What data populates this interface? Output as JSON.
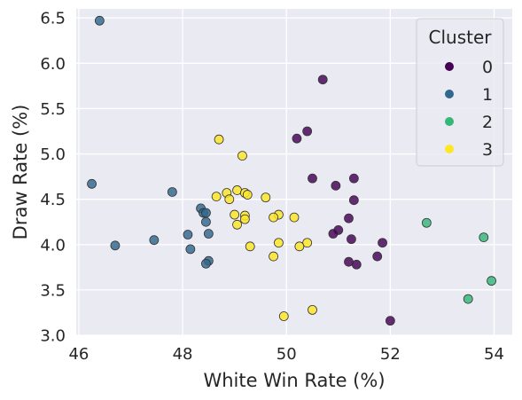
{
  "chart_data": {
    "type": "scatter",
    "title": "",
    "xlabel": "White Win Rate (%)",
    "ylabel": "Draw Rate (%)",
    "xlim": [
      45.95,
      54.35
    ],
    "ylim": [
      3.0,
      6.6
    ],
    "xticks": [
      46,
      48,
      50,
      52,
      54
    ],
    "yticks": [
      3.0,
      3.5,
      4.0,
      4.5,
      5.0,
      5.5,
      6.0,
      6.5
    ],
    "grid": true,
    "legend": {
      "title": "Cluster",
      "placement": "top-right"
    },
    "series": [
      {
        "name": "0",
        "color": "#440154",
        "points": [
          {
            "x": 50.7,
            "y": 5.82
          },
          {
            "x": 50.4,
            "y": 5.25
          },
          {
            "x": 50.2,
            "y": 5.17
          },
          {
            "x": 50.5,
            "y": 4.73
          },
          {
            "x": 50.95,
            "y": 4.65
          },
          {
            "x": 51.3,
            "y": 4.73
          },
          {
            "x": 51.3,
            "y": 4.49
          },
          {
            "x": 51.2,
            "y": 4.29
          },
          {
            "x": 51.0,
            "y": 4.16
          },
          {
            "x": 50.9,
            "y": 4.12
          },
          {
            "x": 51.25,
            "y": 4.06
          },
          {
            "x": 51.85,
            "y": 4.02
          },
          {
            "x": 51.75,
            "y": 3.87
          },
          {
            "x": 51.2,
            "y": 3.81
          },
          {
            "x": 51.35,
            "y": 3.78
          },
          {
            "x": 52.0,
            "y": 3.16
          }
        ]
      },
      {
        "name": "1",
        "color": "#31688e",
        "points": [
          {
            "x": 46.4,
            "y": 6.47
          },
          {
            "x": 46.25,
            "y": 4.67
          },
          {
            "x": 47.8,
            "y": 4.58
          },
          {
            "x": 48.35,
            "y": 4.4
          },
          {
            "x": 48.4,
            "y": 4.35
          },
          {
            "x": 48.45,
            "y": 4.35
          },
          {
            "x": 48.45,
            "y": 4.25
          },
          {
            "x": 48.1,
            "y": 4.11
          },
          {
            "x": 48.5,
            "y": 4.12
          },
          {
            "x": 47.45,
            "y": 4.05
          },
          {
            "x": 46.7,
            "y": 3.99
          },
          {
            "x": 48.15,
            "y": 3.95
          },
          {
            "x": 48.5,
            "y": 3.82
          },
          {
            "x": 48.45,
            "y": 3.79
          }
        ]
      },
      {
        "name": "2",
        "color": "#35b779",
        "points": [
          {
            "x": 52.7,
            "y": 4.24
          },
          {
            "x": 53.8,
            "y": 4.08
          },
          {
            "x": 53.95,
            "y": 3.6
          },
          {
            "x": 53.5,
            "y": 3.4
          }
        ]
      },
      {
        "name": "3",
        "color": "#fde725",
        "points": [
          {
            "x": 48.7,
            "y": 5.16
          },
          {
            "x": 49.15,
            "y": 4.98
          },
          {
            "x": 49.05,
            "y": 4.6
          },
          {
            "x": 49.2,
            "y": 4.57
          },
          {
            "x": 49.25,
            "y": 4.55
          },
          {
            "x": 48.85,
            "y": 4.57
          },
          {
            "x": 48.65,
            "y": 4.53
          },
          {
            "x": 48.9,
            "y": 4.5
          },
          {
            "x": 49.6,
            "y": 4.52
          },
          {
            "x": 49.0,
            "y": 4.33
          },
          {
            "x": 49.2,
            "y": 4.32
          },
          {
            "x": 49.2,
            "y": 4.28
          },
          {
            "x": 49.05,
            "y": 4.22
          },
          {
            "x": 49.85,
            "y": 4.33
          },
          {
            "x": 49.75,
            "y": 4.3
          },
          {
            "x": 50.15,
            "y": 4.3
          },
          {
            "x": 49.85,
            "y": 4.02
          },
          {
            "x": 49.3,
            "y": 3.98
          },
          {
            "x": 50.4,
            "y": 4.02
          },
          {
            "x": 50.25,
            "y": 3.98
          },
          {
            "x": 49.75,
            "y": 3.87
          },
          {
            "x": 50.5,
            "y": 3.28
          },
          {
            "x": 49.95,
            "y": 3.21
          }
        ]
      }
    ]
  }
}
